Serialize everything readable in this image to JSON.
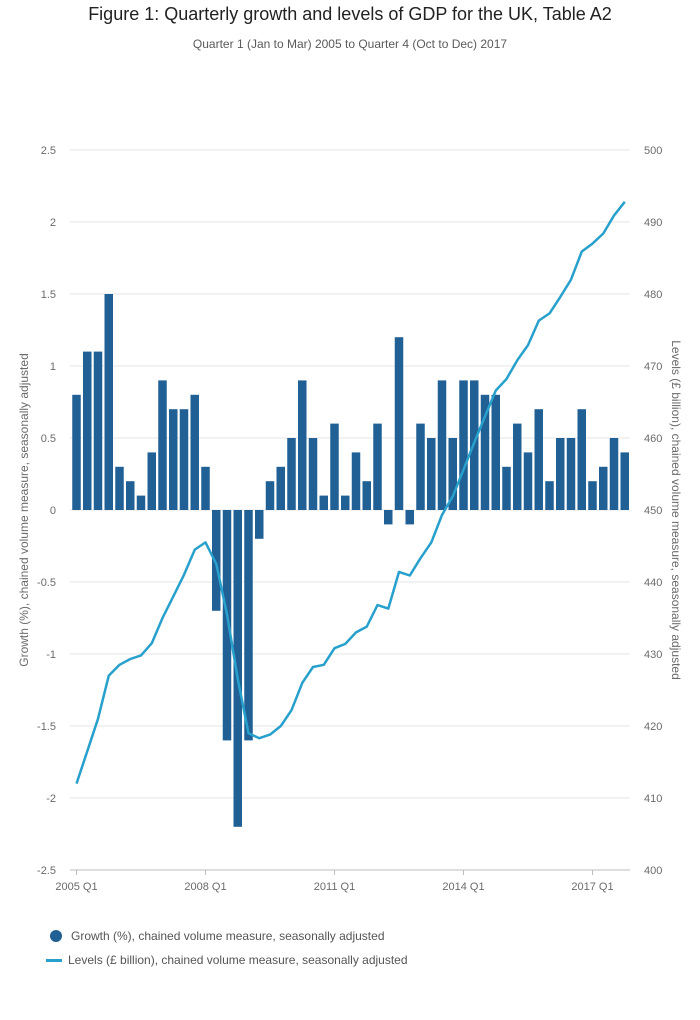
{
  "title": "Figure 1: Quarterly growth and levels of GDP for the UK, Table A2",
  "subtitle": "Quarter 1 (Jan to Mar) 2005 to Quarter 4 (Oct to Dec) 2017",
  "colors": {
    "bar": "#206095",
    "line": "#27a0cc",
    "grid": "#e6e6e6",
    "axis_text": "#6b6b6b"
  },
  "chart_data": {
    "type": "bar+line",
    "x_ticks": [
      "2005 Q1",
      "2008 Q1",
      "2011 Q1",
      "2014 Q1",
      "2017 Q1"
    ],
    "y_left": {
      "label": "Growth (%), chained volume measure, seasonally adjusted",
      "range": [
        -2.5,
        2.5
      ],
      "ticks": [
        "2.5",
        "2",
        "1.5",
        "1",
        "0.5",
        "0",
        "-0.5",
        "-1",
        "-1.5",
        "-2",
        "-2.5"
      ]
    },
    "y_right": {
      "label": "Levels (£ billion), chained volume measure, seasonally adjusted",
      "range": [
        400,
        500
      ],
      "ticks": [
        "500",
        "490",
        "480",
        "470",
        "460",
        "450",
        "440",
        "430",
        "420",
        "410",
        "400"
      ]
    },
    "grid": true,
    "series": [
      {
        "name": "Growth (%), chained volume measure, seasonally adjusted",
        "type": "bar",
        "axis": "left",
        "values": [
          0.8,
          1.1,
          1.1,
          1.5,
          0.3,
          0.2,
          0.1,
          0.4,
          0.9,
          0.7,
          0.7,
          0.8,
          0.3,
          -0.7,
          -1.6,
          -2.2,
          -1.6,
          -0.2,
          0.2,
          0.3,
          0.5,
          0.9,
          0.5,
          0.1,
          0.6,
          0.1,
          0.4,
          0.2,
          0.6,
          -0.1,
          1.2,
          -0.1,
          0.6,
          0.5,
          0.9,
          0.5,
          0.9,
          0.9,
          0.8,
          0.8,
          0.3,
          0.6,
          0.4,
          0.7,
          0.2,
          0.5,
          0.5,
          0.7,
          0.2,
          0.3,
          0.5,
          0.4
        ]
      },
      {
        "name": "Levels (£ billion), chained volume measure, seasonally adjusted",
        "type": "line",
        "axis": "right",
        "values": [
          412,
          416.5,
          421,
          427,
          428.5,
          429.3,
          429.8,
          431.5,
          435,
          438,
          441,
          444.5,
          445.5,
          442.5,
          435.5,
          426.5,
          419,
          418.3,
          418.8,
          420,
          422.2,
          426,
          428.2,
          428.5,
          430.8,
          431.4,
          433,
          433.8,
          436.8,
          436.3,
          441.4,
          440.9,
          443.3,
          445.5,
          449.3,
          451.9,
          455.6,
          459.4,
          463,
          466.6,
          468.2,
          470.8,
          472.9,
          476.3,
          477.3,
          479.6,
          482,
          485.9,
          487,
          488.4,
          490.9,
          492.8
        ]
      }
    ],
    "legend_position": "bottom-left"
  }
}
